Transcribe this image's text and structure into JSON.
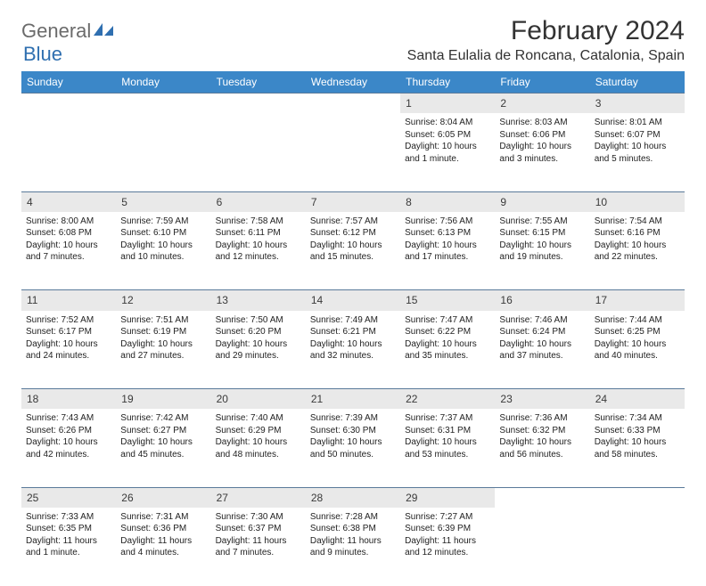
{
  "logo": {
    "word1": "General",
    "word2": "Blue"
  },
  "title": "February 2024",
  "location": "Santa Eulalia de Roncana, Catalonia, Spain",
  "colors": {
    "header_bg": "#3b87c8",
    "header_text": "#ffffff",
    "daynum_bg": "#e9e9e9",
    "border": "#5a7a9a",
    "logo_gray": "#6b6b6b",
    "logo_blue": "#2f6fb0"
  },
  "weekdays": [
    "Sunday",
    "Monday",
    "Tuesday",
    "Wednesday",
    "Thursday",
    "Friday",
    "Saturday"
  ],
  "weeks": [
    {
      "nums": [
        "",
        "",
        "",
        "",
        "1",
        "2",
        "3"
      ],
      "cells": [
        null,
        null,
        null,
        null,
        {
          "sunrise": "Sunrise: 8:04 AM",
          "sunset": "Sunset: 6:05 PM",
          "daylight": "Daylight: 10 hours and 1 minute."
        },
        {
          "sunrise": "Sunrise: 8:03 AM",
          "sunset": "Sunset: 6:06 PM",
          "daylight": "Daylight: 10 hours and 3 minutes."
        },
        {
          "sunrise": "Sunrise: 8:01 AM",
          "sunset": "Sunset: 6:07 PM",
          "daylight": "Daylight: 10 hours and 5 minutes."
        }
      ]
    },
    {
      "nums": [
        "4",
        "5",
        "6",
        "7",
        "8",
        "9",
        "10"
      ],
      "cells": [
        {
          "sunrise": "Sunrise: 8:00 AM",
          "sunset": "Sunset: 6:08 PM",
          "daylight": "Daylight: 10 hours and 7 minutes."
        },
        {
          "sunrise": "Sunrise: 7:59 AM",
          "sunset": "Sunset: 6:10 PM",
          "daylight": "Daylight: 10 hours and 10 minutes."
        },
        {
          "sunrise": "Sunrise: 7:58 AM",
          "sunset": "Sunset: 6:11 PM",
          "daylight": "Daylight: 10 hours and 12 minutes."
        },
        {
          "sunrise": "Sunrise: 7:57 AM",
          "sunset": "Sunset: 6:12 PM",
          "daylight": "Daylight: 10 hours and 15 minutes."
        },
        {
          "sunrise": "Sunrise: 7:56 AM",
          "sunset": "Sunset: 6:13 PM",
          "daylight": "Daylight: 10 hours and 17 minutes."
        },
        {
          "sunrise": "Sunrise: 7:55 AM",
          "sunset": "Sunset: 6:15 PM",
          "daylight": "Daylight: 10 hours and 19 minutes."
        },
        {
          "sunrise": "Sunrise: 7:54 AM",
          "sunset": "Sunset: 6:16 PM",
          "daylight": "Daylight: 10 hours and 22 minutes."
        }
      ]
    },
    {
      "nums": [
        "11",
        "12",
        "13",
        "14",
        "15",
        "16",
        "17"
      ],
      "cells": [
        {
          "sunrise": "Sunrise: 7:52 AM",
          "sunset": "Sunset: 6:17 PM",
          "daylight": "Daylight: 10 hours and 24 minutes."
        },
        {
          "sunrise": "Sunrise: 7:51 AM",
          "sunset": "Sunset: 6:19 PM",
          "daylight": "Daylight: 10 hours and 27 minutes."
        },
        {
          "sunrise": "Sunrise: 7:50 AM",
          "sunset": "Sunset: 6:20 PM",
          "daylight": "Daylight: 10 hours and 29 minutes."
        },
        {
          "sunrise": "Sunrise: 7:49 AM",
          "sunset": "Sunset: 6:21 PM",
          "daylight": "Daylight: 10 hours and 32 minutes."
        },
        {
          "sunrise": "Sunrise: 7:47 AM",
          "sunset": "Sunset: 6:22 PM",
          "daylight": "Daylight: 10 hours and 35 minutes."
        },
        {
          "sunrise": "Sunrise: 7:46 AM",
          "sunset": "Sunset: 6:24 PM",
          "daylight": "Daylight: 10 hours and 37 minutes."
        },
        {
          "sunrise": "Sunrise: 7:44 AM",
          "sunset": "Sunset: 6:25 PM",
          "daylight": "Daylight: 10 hours and 40 minutes."
        }
      ]
    },
    {
      "nums": [
        "18",
        "19",
        "20",
        "21",
        "22",
        "23",
        "24"
      ],
      "cells": [
        {
          "sunrise": "Sunrise: 7:43 AM",
          "sunset": "Sunset: 6:26 PM",
          "daylight": "Daylight: 10 hours and 42 minutes."
        },
        {
          "sunrise": "Sunrise: 7:42 AM",
          "sunset": "Sunset: 6:27 PM",
          "daylight": "Daylight: 10 hours and 45 minutes."
        },
        {
          "sunrise": "Sunrise: 7:40 AM",
          "sunset": "Sunset: 6:29 PM",
          "daylight": "Daylight: 10 hours and 48 minutes."
        },
        {
          "sunrise": "Sunrise: 7:39 AM",
          "sunset": "Sunset: 6:30 PM",
          "daylight": "Daylight: 10 hours and 50 minutes."
        },
        {
          "sunrise": "Sunrise: 7:37 AM",
          "sunset": "Sunset: 6:31 PM",
          "daylight": "Daylight: 10 hours and 53 minutes."
        },
        {
          "sunrise": "Sunrise: 7:36 AM",
          "sunset": "Sunset: 6:32 PM",
          "daylight": "Daylight: 10 hours and 56 minutes."
        },
        {
          "sunrise": "Sunrise: 7:34 AM",
          "sunset": "Sunset: 6:33 PM",
          "daylight": "Daylight: 10 hours and 58 minutes."
        }
      ]
    },
    {
      "nums": [
        "25",
        "26",
        "27",
        "28",
        "29",
        "",
        ""
      ],
      "cells": [
        {
          "sunrise": "Sunrise: 7:33 AM",
          "sunset": "Sunset: 6:35 PM",
          "daylight": "Daylight: 11 hours and 1 minute."
        },
        {
          "sunrise": "Sunrise: 7:31 AM",
          "sunset": "Sunset: 6:36 PM",
          "daylight": "Daylight: 11 hours and 4 minutes."
        },
        {
          "sunrise": "Sunrise: 7:30 AM",
          "sunset": "Sunset: 6:37 PM",
          "daylight": "Daylight: 11 hours and 7 minutes."
        },
        {
          "sunrise": "Sunrise: 7:28 AM",
          "sunset": "Sunset: 6:38 PM",
          "daylight": "Daylight: 11 hours and 9 minutes."
        },
        {
          "sunrise": "Sunrise: 7:27 AM",
          "sunset": "Sunset: 6:39 PM",
          "daylight": "Daylight: 11 hours and 12 minutes."
        },
        null,
        null
      ]
    }
  ]
}
